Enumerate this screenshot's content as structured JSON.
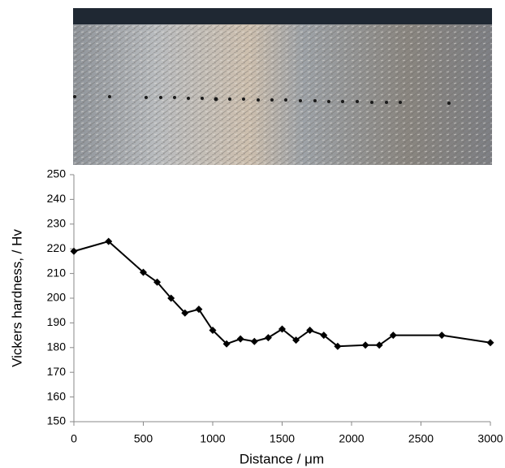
{
  "chart_data": {
    "type": "line",
    "x": [
      0,
      250,
      500,
      600,
      700,
      800,
      900,
      1000,
      1100,
      1200,
      1300,
      1400,
      1500,
      1600,
      1700,
      1800,
      1900,
      2100,
      2200,
      2300,
      2650,
      3000
    ],
    "series": [
      {
        "color": "#000000",
        "values": [
          219,
          223,
          210.5,
          206.5,
          200,
          194,
          195.5,
          187,
          181.5,
          183.5,
          182.5,
          184,
          187.5,
          183,
          187,
          185,
          180.5,
          181,
          181,
          185,
          185,
          182
        ]
      }
    ],
    "xlabel": "Distance / μm",
    "ylabel": "Vickers hardness, / Hv",
    "xlim": [
      0,
      3000
    ],
    "xticks": [
      0,
      500,
      1000,
      1500,
      2000,
      2500,
      3000
    ],
    "ylim": [
      150,
      250
    ],
    "yticks": [
      150,
      160,
      170,
      180,
      190,
      200,
      210,
      220,
      230,
      240,
      250
    ],
    "grid": false
  }
}
